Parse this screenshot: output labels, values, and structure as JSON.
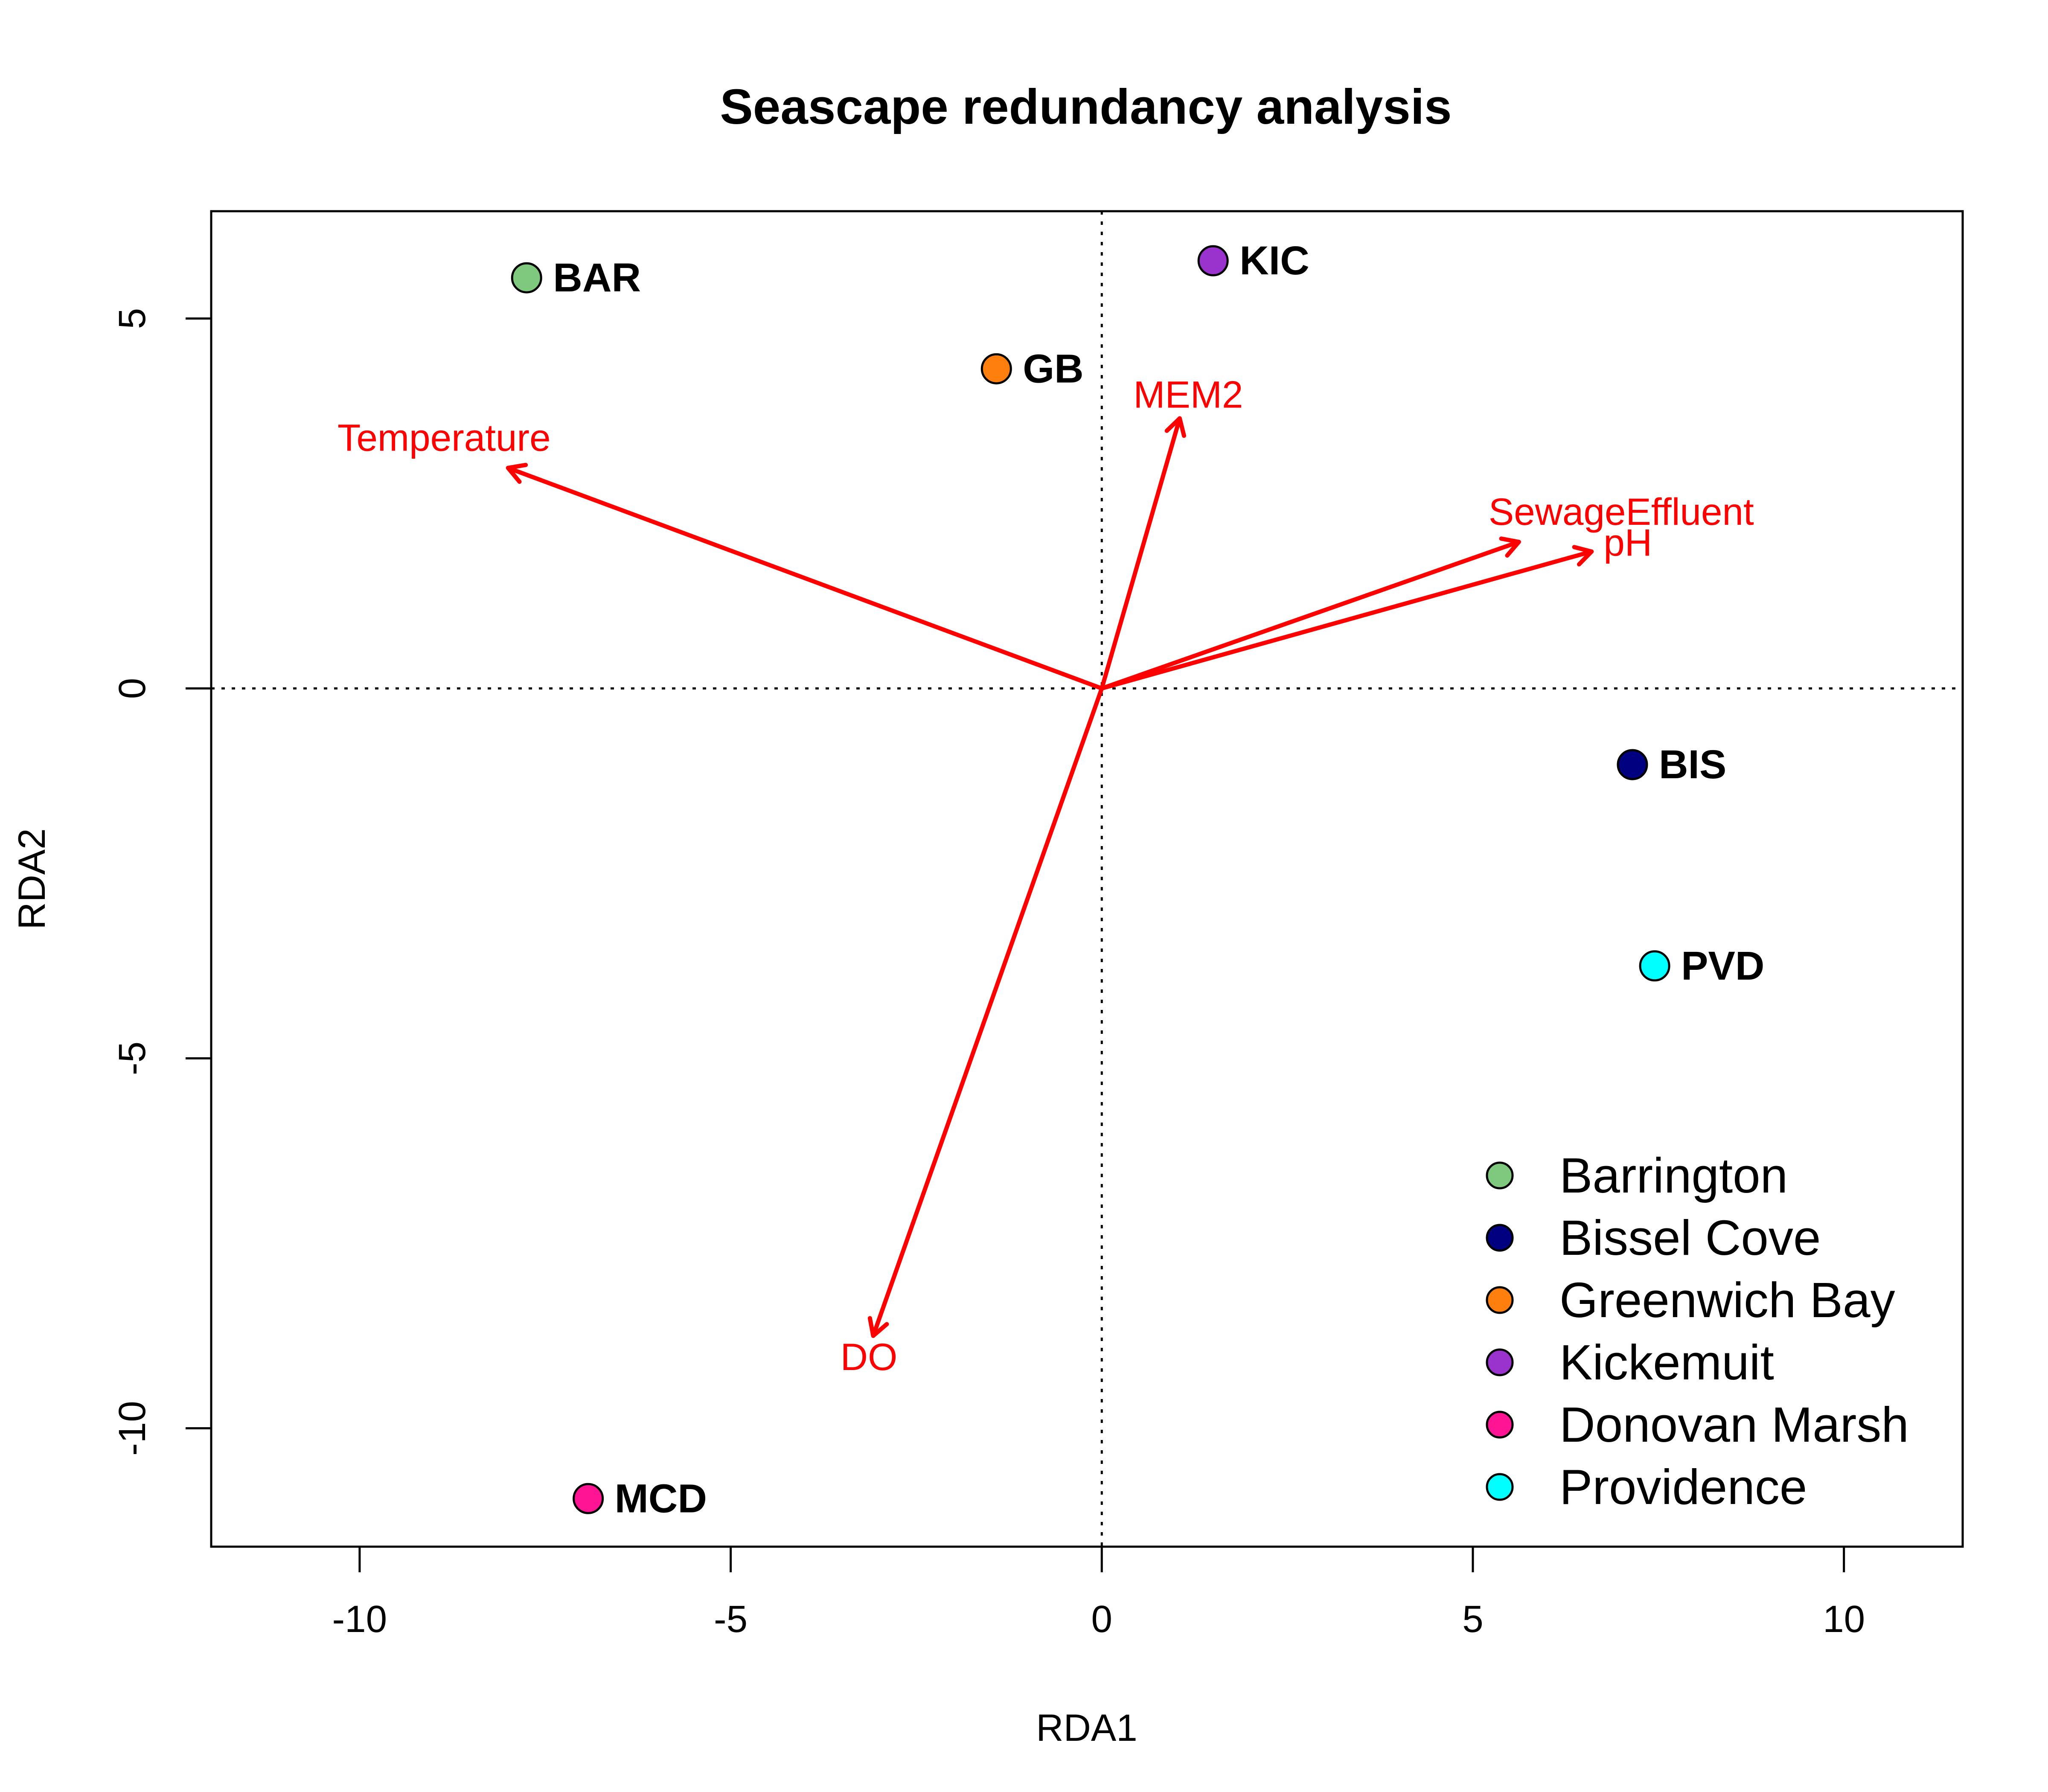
{
  "chart_data": {
    "type": "scatter",
    "title": "Seascape redundancy analysis",
    "xlabel": "RDA1",
    "ylabel": "RDA2",
    "xlim": [
      -12,
      11.6
    ],
    "ylim": [
      -11.6,
      6.45
    ],
    "xticks": [
      -10,
      -5,
      0,
      5,
      10
    ],
    "yticks": [
      -10,
      -5,
      0,
      5
    ],
    "xtick_labels": [
      "-10",
      "-5",
      "0",
      "5",
      "10"
    ],
    "ytick_labels": [
      "-10",
      "-5",
      "0",
      "5"
    ],
    "reference_lines": {
      "x": 0,
      "y": 0,
      "style": "dotted"
    },
    "grid": false,
    "sites": [
      {
        "label": "BAR",
        "x": -7.75,
        "y": 5.55,
        "color": "#7fc97f"
      },
      {
        "label": "GB",
        "x": -1.42,
        "y": 4.32,
        "color": "#ff7f0e"
      },
      {
        "label": "KIC",
        "x": 1.5,
        "y": 5.78,
        "color": "#9a32cd"
      },
      {
        "label": "BIS",
        "x": 7.15,
        "y": -1.03,
        "color": "#000080"
      },
      {
        "label": "PVD",
        "x": 7.45,
        "y": -3.75,
        "color": "#00ffff"
      },
      {
        "label": "MCD",
        "x": -6.92,
        "y": -10.95,
        "color": "#ff1493"
      }
    ],
    "vectors": [
      {
        "label": "Temperature",
        "x": -8.0,
        "y": 2.98
      },
      {
        "label": "MEM2",
        "x": 1.05,
        "y": 3.65
      },
      {
        "label": "SewageEffluent",
        "x": 5.62,
        "y": 1.98
      },
      {
        "label": "pH",
        "x": 6.6,
        "y": 1.85
      },
      {
        "label": "DO",
        "x": -3.08,
        "y": -8.75
      }
    ],
    "vector_color": "#ff0000",
    "legend": {
      "placement": "bottom-right",
      "entries": [
        {
          "label": "Barrington",
          "color": "#7fc97f"
        },
        {
          "label": "Bissel Cove",
          "color": "#000080"
        },
        {
          "label": "Greenwich Bay",
          "color": "#ff7f0e"
        },
        {
          "label": "Kickemuit",
          "color": "#9a32cd"
        },
        {
          "label": "Donovan Marsh",
          "color": "#ff1493"
        },
        {
          "label": "Providence",
          "color": "#00ffff"
        }
      ]
    }
  }
}
